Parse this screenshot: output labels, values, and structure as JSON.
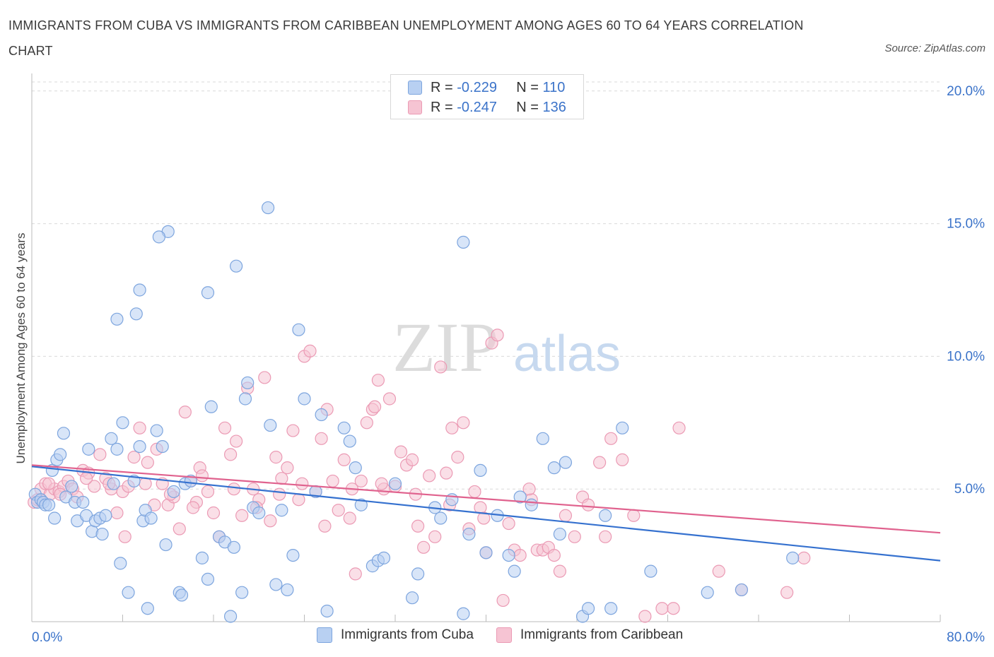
{
  "title": "IMMIGRANTS FROM CUBA VS IMMIGRANTS FROM CARIBBEAN UNEMPLOYMENT AMONG AGES 60 TO 64 YEARS CORRELATION CHART",
  "source": "Source: ZipAtlas.com",
  "watermark": {
    "zip": "ZIP",
    "atlas": "atlas"
  },
  "legend_top": [
    {
      "r_label": "R =",
      "r_value": "-0.229",
      "n_label": "N =",
      "n_value": "110"
    },
    {
      "r_label": "R =",
      "r_value": "-0.247",
      "n_label": "N =",
      "n_value": "136"
    }
  ],
  "legend_bottom": [
    "Immigrants from Cuba",
    "Immigrants from Caribbean"
  ],
  "colors": {
    "cuba_fill": "#b8d0f2",
    "cuba_stroke": "#7da5de",
    "cuba_line": "#3571cf",
    "carib_fill": "#f6c4d3",
    "carib_stroke": "#eb9ab4",
    "carib_line": "#e0628e",
    "axis_text": "#3b73c9",
    "grid": "#d9d9d9"
  },
  "chart_data": {
    "type": "scatter",
    "title": "IMMIGRANTS FROM CUBA VS IMMIGRANTS FROM CARIBBEAN UNEMPLOYMENT AMONG AGES 60 TO 64 YEARS CORRELATION CHART",
    "xlabel": "",
    "ylabel": "Unemployment Among Ages 60 to 64 years",
    "x_tick_labels": [
      "0.0%",
      "80.0%"
    ],
    "y_tick_labels": [
      "5.0%",
      "10.0%",
      "15.0%",
      "20.0%"
    ],
    "y_ticks": [
      5,
      10,
      15,
      20
    ],
    "xlim": [
      0,
      80
    ],
    "ylim": [
      0,
      20.5
    ],
    "grid": true,
    "legend_position": "top-center",
    "series": [
      {
        "name": "Immigrants from Cuba",
        "r": -0.229,
        "n": 110,
        "trend": {
          "x": [
            0,
            80
          ],
          "y": [
            5.85,
            2.3
          ]
        },
        "points": [
          [
            0.3,
            4.8
          ],
          [
            0.5,
            4.5
          ],
          [
            0.8,
            4.6
          ],
          [
            1.0,
            4.5
          ],
          [
            1.2,
            4.4
          ],
          [
            1.5,
            4.4
          ],
          [
            1.8,
            5.7
          ],
          [
            2.0,
            3.9
          ],
          [
            2.2,
            6.1
          ],
          [
            2.5,
            6.3
          ],
          [
            2.8,
            7.1
          ],
          [
            3.0,
            4.7
          ],
          [
            3.5,
            5.1
          ],
          [
            3.8,
            4.5
          ],
          [
            4.0,
            3.8
          ],
          [
            4.5,
            4.5
          ],
          [
            4.8,
            4.0
          ],
          [
            5.0,
            6.5
          ],
          [
            5.3,
            3.4
          ],
          [
            5.6,
            3.8
          ],
          [
            6.0,
            3.9
          ],
          [
            6.2,
            3.3
          ],
          [
            6.5,
            4.0
          ],
          [
            7.0,
            6.9
          ],
          [
            7.2,
            5.2
          ],
          [
            7.5,
            6.5
          ],
          [
            7.8,
            2.2
          ],
          [
            8.0,
            7.5
          ],
          [
            8.5,
            1.1
          ],
          [
            9.0,
            5.3
          ],
          [
            9.5,
            6.6
          ],
          [
            9.8,
            3.8
          ],
          [
            10.0,
            4.2
          ],
          [
            10.2,
            0.5
          ],
          [
            10.5,
            3.9
          ],
          [
            11.0,
            7.2
          ],
          [
            11.5,
            6.6
          ],
          [
            11.8,
            2.9
          ],
          [
            12.5,
            4.9
          ],
          [
            13.0,
            1.1
          ],
          [
            13.2,
            1.0
          ],
          [
            13.5,
            5.2
          ],
          [
            14.0,
            5.3
          ],
          [
            15.0,
            2.4
          ],
          [
            15.5,
            1.6
          ],
          [
            15.8,
            8.1
          ],
          [
            16.5,
            3.2
          ],
          [
            17.0,
            3.0
          ],
          [
            17.5,
            0.2
          ],
          [
            17.8,
            2.8
          ],
          [
            18.5,
            1.1
          ],
          [
            18.8,
            8.4
          ],
          [
            19.0,
            9.0
          ],
          [
            19.5,
            4.3
          ],
          [
            20.0,
            4.1
          ],
          [
            21.0,
            7.4
          ],
          [
            21.5,
            1.4
          ],
          [
            22.0,
            4.2
          ],
          [
            22.5,
            1.2
          ],
          [
            23.0,
            2.5
          ],
          [
            23.5,
            11.0
          ],
          [
            24.0,
            8.4
          ],
          [
            25.0,
            4.9
          ],
          [
            25.5,
            7.8
          ],
          [
            26.0,
            0.4
          ],
          [
            27.5,
            7.3
          ],
          [
            28.0,
            6.8
          ],
          [
            28.5,
            5.8
          ],
          [
            29.0,
            4.4
          ],
          [
            30.0,
            2.1
          ],
          [
            30.5,
            2.3
          ],
          [
            31.0,
            2.4
          ],
          [
            32.0,
            5.2
          ],
          [
            33.5,
            0.9
          ],
          [
            34.0,
            1.8
          ],
          [
            35.5,
            4.3
          ],
          [
            36.0,
            3.9
          ],
          [
            37.0,
            4.6
          ],
          [
            38.0,
            0.3
          ],
          [
            38.5,
            3.3
          ],
          [
            39.5,
            5.7
          ],
          [
            40.0,
            2.6
          ],
          [
            41.0,
            4.0
          ],
          [
            42.0,
            2.5
          ],
          [
            42.5,
            1.9
          ],
          [
            43.0,
            4.7
          ],
          [
            44.0,
            4.4
          ],
          [
            45.0,
            6.9
          ],
          [
            46.0,
            5.8
          ],
          [
            46.5,
            3.3
          ],
          [
            47.0,
            6.0
          ],
          [
            48.5,
            0.2
          ],
          [
            49.0,
            0.5
          ],
          [
            50.5,
            4.0
          ],
          [
            51.0,
            0.5
          ],
          [
            52.0,
            7.3
          ],
          [
            54.5,
            1.9
          ],
          [
            59.5,
            1.1
          ],
          [
            62.5,
            1.2
          ],
          [
            67.0,
            2.4
          ],
          [
            12.0,
            14.7
          ],
          [
            11.2,
            14.5
          ],
          [
            20.8,
            15.6
          ],
          [
            38.0,
            14.3
          ],
          [
            18.0,
            13.4
          ],
          [
            9.5,
            12.5
          ],
          [
            9.2,
            11.6
          ],
          [
            15.5,
            12.4
          ],
          [
            7.5,
            11.4
          ]
        ]
      },
      {
        "name": "Immigrants from Caribbean",
        "r": -0.247,
        "n": 136,
        "trend": {
          "x": [
            0,
            80
          ],
          "y": [
            5.9,
            3.35
          ]
        },
        "points": [
          [
            0.2,
            4.5
          ],
          [
            0.5,
            4.6
          ],
          [
            0.8,
            5.0
          ],
          [
            1.2,
            5.2
          ],
          [
            1.6,
            4.8
          ],
          [
            2.0,
            5.0
          ],
          [
            2.4,
            4.9
          ],
          [
            2.8,
            5.1
          ],
          [
            3.2,
            5.3
          ],
          [
            3.6,
            5.0
          ],
          [
            4.0,
            4.7
          ],
          [
            4.5,
            5.7
          ],
          [
            5.0,
            5.6
          ],
          [
            5.5,
            5.1
          ],
          [
            6.0,
            6.3
          ],
          [
            6.5,
            5.4
          ],
          [
            7.0,
            5.0
          ],
          [
            7.5,
            4.1
          ],
          [
            8.0,
            4.9
          ],
          [
            8.2,
            3.2
          ],
          [
            8.5,
            5.1
          ],
          [
            9.0,
            6.2
          ],
          [
            9.5,
            7.3
          ],
          [
            10.0,
            5.2
          ],
          [
            10.2,
            6.0
          ],
          [
            10.8,
            4.4
          ],
          [
            11.0,
            6.5
          ],
          [
            11.5,
            5.2
          ],
          [
            12.0,
            4.4
          ],
          [
            12.5,
            4.7
          ],
          [
            13.0,
            3.5
          ],
          [
            13.5,
            7.9
          ],
          [
            14.0,
            5.3
          ],
          [
            14.5,
            4.5
          ],
          [
            14.8,
            5.8
          ],
          [
            15.0,
            5.5
          ],
          [
            15.5,
            4.9
          ],
          [
            16.0,
            4.1
          ],
          [
            16.5,
            3.2
          ],
          [
            17.0,
            7.3
          ],
          [
            17.5,
            6.3
          ],
          [
            18.0,
            6.8
          ],
          [
            18.5,
            4.0
          ],
          [
            19.0,
            8.8
          ],
          [
            19.5,
            5.0
          ],
          [
            20.0,
            4.6
          ],
          [
            20.5,
            9.2
          ],
          [
            21.0,
            3.8
          ],
          [
            21.5,
            6.2
          ],
          [
            22.0,
            5.4
          ],
          [
            22.5,
            5.8
          ],
          [
            23.0,
            7.2
          ],
          [
            23.5,
            4.6
          ],
          [
            24.0,
            10.0
          ],
          [
            24.5,
            10.2
          ],
          [
            25.0,
            4.9
          ],
          [
            25.5,
            6.9
          ],
          [
            26.0,
            8.0
          ],
          [
            26.5,
            5.3
          ],
          [
            27.0,
            4.2
          ],
          [
            27.5,
            6.1
          ],
          [
            28.0,
            3.9
          ],
          [
            28.5,
            1.8
          ],
          [
            29.0,
            5.3
          ],
          [
            29.5,
            7.5
          ],
          [
            30.0,
            8.0
          ],
          [
            30.2,
            8.1
          ],
          [
            30.5,
            9.1
          ],
          [
            31.0,
            5.0
          ],
          [
            31.5,
            8.4
          ],
          [
            32.0,
            5.1
          ],
          [
            32.5,
            6.4
          ],
          [
            33.0,
            5.9
          ],
          [
            33.5,
            6.1
          ],
          [
            34.0,
            3.6
          ],
          [
            34.5,
            2.8
          ],
          [
            35.0,
            5.5
          ],
          [
            35.5,
            3.2
          ],
          [
            36.0,
            9.6
          ],
          [
            36.5,
            5.6
          ],
          [
            37.0,
            7.3
          ],
          [
            37.5,
            6.2
          ],
          [
            38.0,
            7.5
          ],
          [
            38.5,
            3.5
          ],
          [
            39.0,
            4.9
          ],
          [
            39.5,
            4.3
          ],
          [
            40.0,
            2.6
          ],
          [
            40.5,
            10.5
          ],
          [
            41.0,
            10.8
          ],
          [
            41.5,
            0.8
          ],
          [
            42.0,
            3.7
          ],
          [
            42.5,
            2.7
          ],
          [
            43.0,
            2.5
          ],
          [
            44.0,
            4.6
          ],
          [
            44.5,
            2.7
          ],
          [
            45.0,
            2.7
          ],
          [
            45.5,
            2.8
          ],
          [
            46.0,
            2.5
          ],
          [
            46.5,
            1.9
          ],
          [
            47.0,
            4.0
          ],
          [
            48.5,
            4.7
          ],
          [
            49.0,
            4.4
          ],
          [
            50.0,
            6.0
          ],
          [
            50.5,
            3.2
          ],
          [
            51.0,
            6.9
          ],
          [
            52.0,
            6.1
          ],
          [
            53.0,
            4.0
          ],
          [
            54.0,
            0.2
          ],
          [
            55.5,
            0.5
          ],
          [
            56.5,
            0.5
          ],
          [
            57.0,
            7.3
          ],
          [
            60.5,
            1.9
          ],
          [
            62.5,
            1.2
          ],
          [
            66.5,
            1.1
          ],
          [
            68.0,
            2.4
          ],
          [
            1.5,
            5.2
          ],
          [
            2.5,
            4.8
          ],
          [
            4.8,
            5.4
          ],
          [
            6.8,
            5.2
          ],
          [
            12.2,
            4.8
          ],
          [
            14.2,
            4.3
          ],
          [
            17.8,
            5.0
          ],
          [
            19.8,
            4.3
          ],
          [
            21.8,
            4.8
          ],
          [
            23.8,
            5.2
          ],
          [
            25.8,
            3.6
          ],
          [
            28.2,
            5.0
          ],
          [
            30.8,
            5.2
          ],
          [
            33.8,
            4.8
          ],
          [
            36.8,
            4.4
          ],
          [
            39.8,
            3.9
          ],
          [
            43.8,
            5.0
          ],
          [
            47.8,
            3.2
          ]
        ]
      }
    ]
  }
}
